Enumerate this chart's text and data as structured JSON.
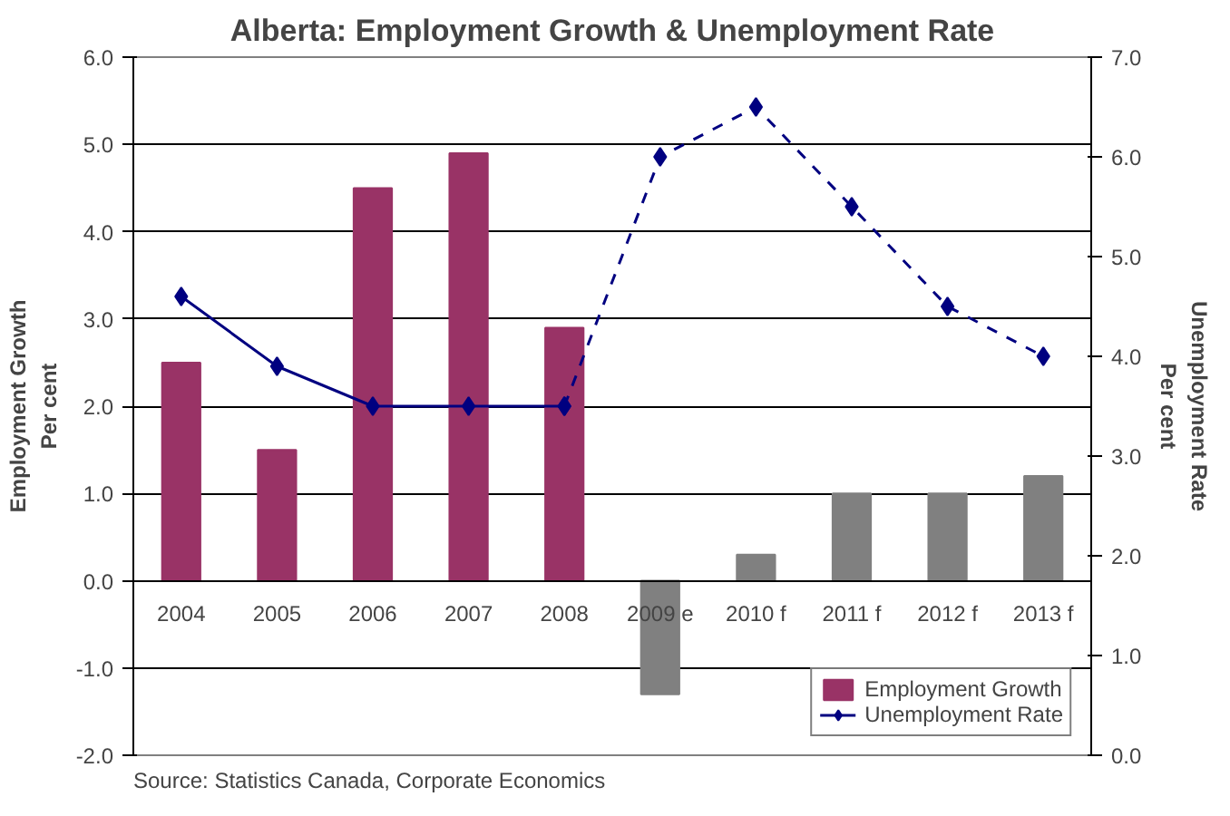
{
  "chart_data": {
    "type": "bar",
    "title": "Alberta: Employment Growth & Unemployment Rate",
    "categories": [
      "2004",
      "2005",
      "2006",
      "2007",
      "2008",
      "2009 e",
      "2010 f",
      "2011 f",
      "2012 f",
      "2013 f"
    ],
    "series": [
      {
        "name": "Employment Growth",
        "color": "#993366",
        "colors": [
          "#993366",
          "#993366",
          "#993366",
          "#993366",
          "#993366",
          "#808080",
          "#808080",
          "#808080",
          "#808080",
          "#808080"
        ],
        "values": [
          2.5,
          1.5,
          4.5,
          4.9,
          2.9,
          -1.3,
          0.3,
          1.0,
          1.0,
          1.2
        ]
      },
      {
        "name": "Unemployment Rate",
        "type": "line",
        "axis": "y2",
        "color": "#000080",
        "marker": "diamond",
        "line_style": "solid",
        "values": [
          4.6,
          3.9,
          3.5,
          3.5,
          3.5,
          null,
          null,
          null,
          null,
          null
        ]
      },
      {
        "type": "line",
        "axis": "y2",
        "color": "#000080",
        "marker": "diamond",
        "line_style": "dashed",
        "values": [
          null,
          null,
          null,
          null,
          3.5,
          6.0,
          6.5,
          5.5,
          4.5,
          4.0
        ]
      }
    ],
    "ylabel": "Employment Growth\nPer cent",
    "y2label": "Unemployment Rate\nPer cent",
    "ylim": [
      -2,
      6
    ],
    "yticks": [
      {
        "value": -2,
        "label": "-2.0"
      },
      {
        "value": -1,
        "label": "-1.0"
      },
      {
        "value": 0,
        "label": "0.0"
      },
      {
        "value": 1,
        "label": "1.0"
      },
      {
        "value": 2,
        "label": "2.0"
      },
      {
        "value": 3,
        "label": "3.0"
      },
      {
        "value": 4,
        "label": "4.0"
      },
      {
        "value": 5,
        "label": "5.0"
      },
      {
        "value": 6,
        "label": "6.0"
      }
    ],
    "y2lim": [
      0,
      7
    ],
    "y2ticks": [
      {
        "value": 0,
        "label": "0.0"
      },
      {
        "value": 1,
        "label": "1.0"
      },
      {
        "value": 2,
        "label": "2.0"
      },
      {
        "value": 3,
        "label": "3.0"
      },
      {
        "value": 4,
        "label": "4.0"
      },
      {
        "value": 5,
        "label": "5.0"
      },
      {
        "value": 6,
        "label": "6.0"
      },
      {
        "value": 7,
        "label": "7.0"
      }
    ],
    "grid": "y",
    "legend": "bottom right",
    "annotations": [
      "Source: Statistics Canada, Corporate Economics"
    ]
  }
}
